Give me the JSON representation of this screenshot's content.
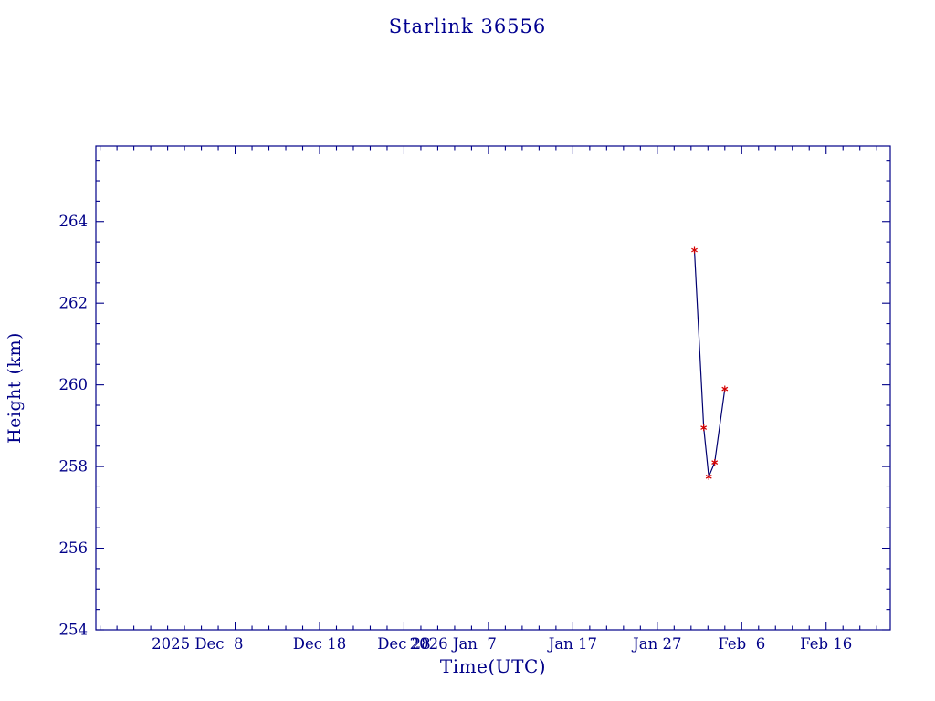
{
  "chart_data": {
    "type": "line",
    "title": "Starlink 36556",
    "xlabel": "Time(UTC)",
    "ylabel": "Height (km)",
    "legend": null,
    "grid": false,
    "colors": {
      "axis": "#000088",
      "text": "#000088",
      "line": "#000070",
      "marker": "#d40000",
      "background": "#ffffff"
    },
    "x_axis": {
      "epoch": "days since 2025 Dec 8",
      "tick_labels": [
        "2025 Dec  8",
        "Dec 18",
        "Dec 28",
        "2026 Jan  7",
        "Jan 17",
        "Jan 27",
        "Feb  6",
        "Feb 16"
      ],
      "tick_positions_days": [
        0,
        10,
        20,
        30,
        40,
        50,
        60,
        70
      ],
      "range_days": [
        -16.5,
        77.6
      ],
      "minor_tick_step_days": 2
    },
    "y_axis": {
      "tick_labels": [
        "254",
        "256",
        "258",
        "260",
        "262",
        "264"
      ],
      "tick_values": [
        254,
        256,
        258,
        260,
        262,
        264
      ],
      "range_km": [
        254,
        265.85
      ],
      "minor_tick_step_km": 0.5
    },
    "series": [
      {
        "name": "height",
        "marker": "asterisk",
        "points": [
          {
            "x_days": 54.4,
            "date_approx": "2026 Jan 31",
            "height_km": 263.3
          },
          {
            "x_days": 55.5,
            "date_approx": "2026 Feb 1",
            "height_km": 258.95
          },
          {
            "x_days": 56.1,
            "date_approx": "2026 Feb 2",
            "height_km": 257.75
          },
          {
            "x_days": 56.8,
            "date_approx": "2026 Feb 2",
            "height_km": 258.1
          },
          {
            "x_days": 58.0,
            "date_approx": "2026 Feb 4",
            "height_km": 259.9
          }
        ]
      }
    ]
  }
}
